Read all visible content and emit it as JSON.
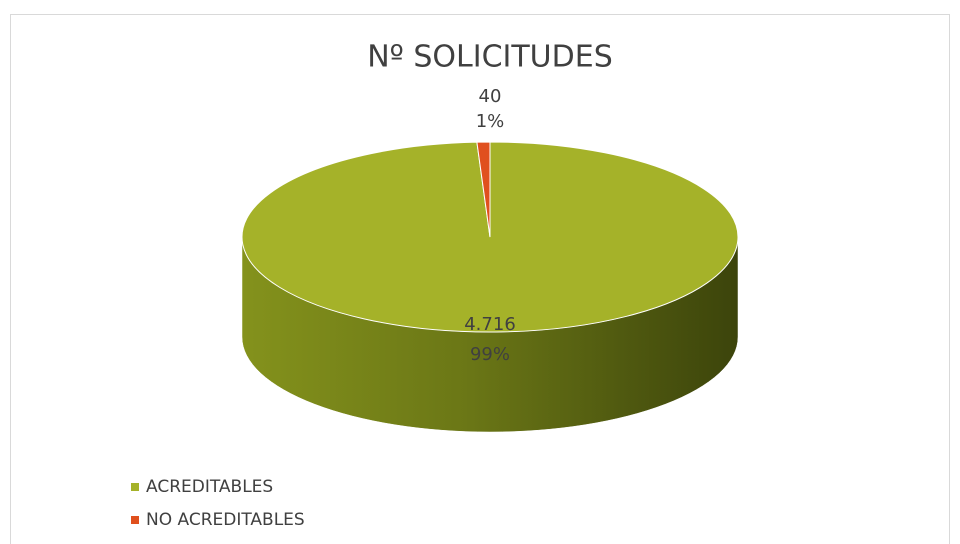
{
  "chart_data": {
    "type": "pie",
    "title": "Nº SOLICITUDES",
    "categories": [
      "ACREDITABLES",
      "NO ACREDITABLES"
    ],
    "values": [
      4716,
      40
    ],
    "value_labels": [
      "4.716",
      "40"
    ],
    "percents": [
      99,
      1
    ],
    "percent_labels": [
      "99%",
      "1%"
    ],
    "colors": [
      "#a5b229",
      "#e0501e"
    ],
    "legend": "bottom-left"
  }
}
